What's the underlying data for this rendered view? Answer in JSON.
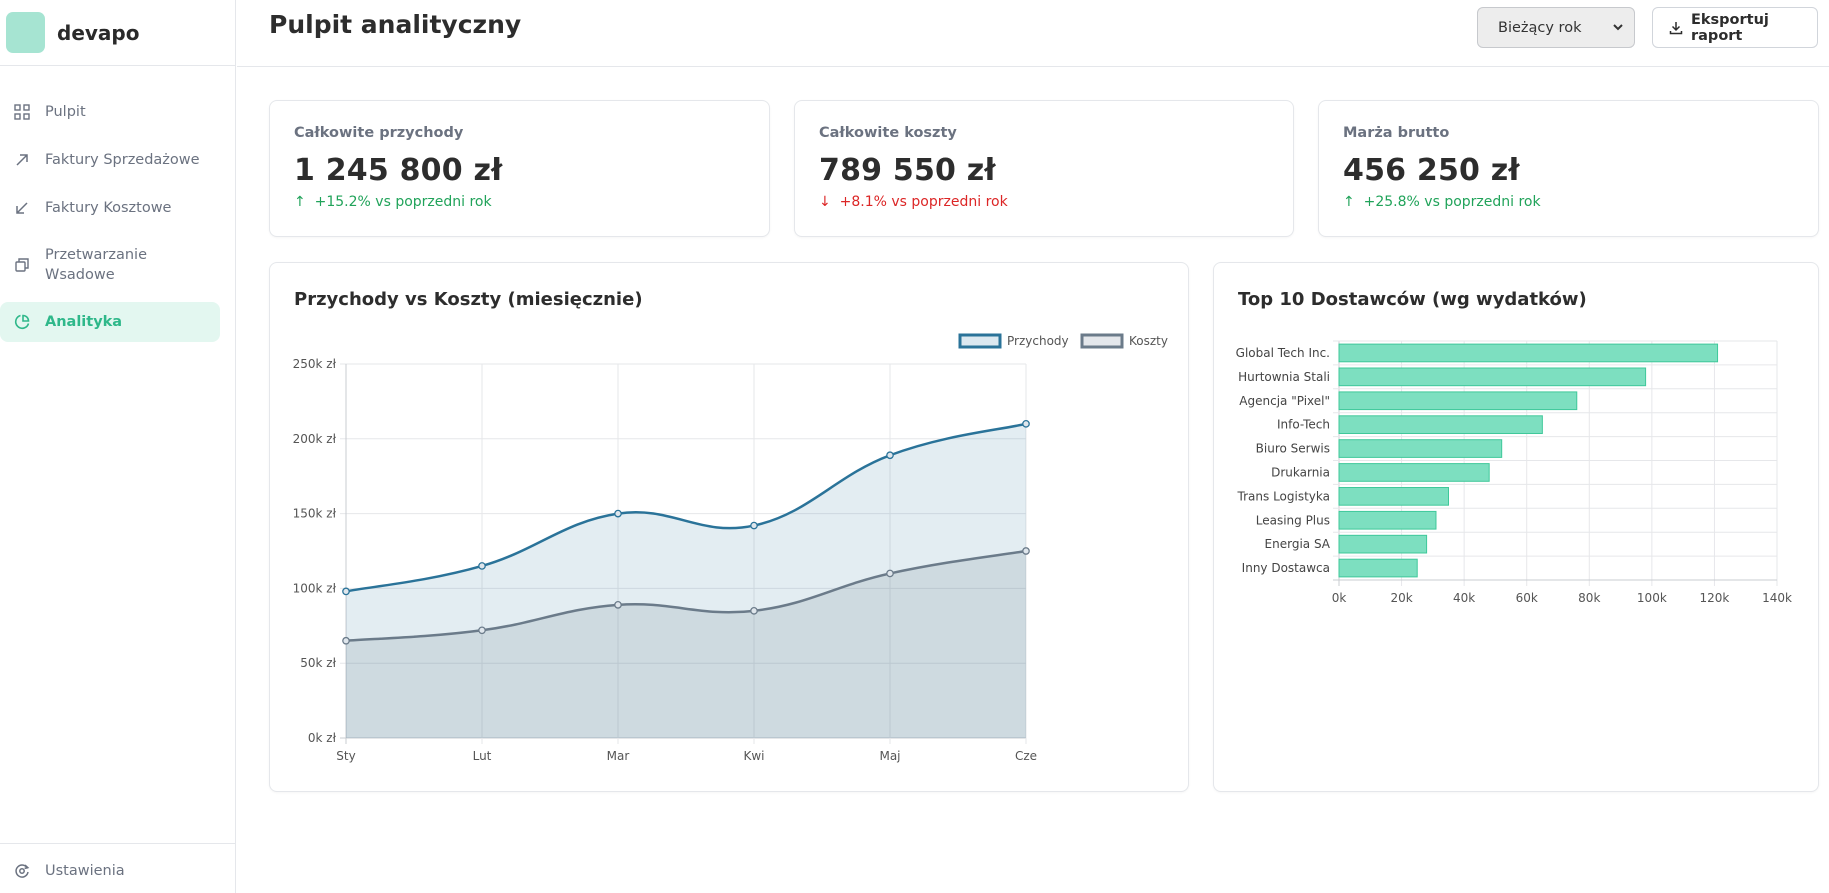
{
  "brand": {
    "name": "devapo"
  },
  "sidebar": {
    "items": [
      {
        "label": "Pulpit",
        "icon": "grid-icon"
      },
      {
        "label": "Faktury Sprzedażowe",
        "icon": "arrow-up-right-icon"
      },
      {
        "label": "Faktury Kosztowe",
        "icon": "arrow-down-left-icon"
      },
      {
        "label": "Przetwarzanie Wsadowe",
        "icon": "batch-icon"
      },
      {
        "label": "Analityka",
        "icon": "pie-chart-icon",
        "active": true
      }
    ],
    "footer": {
      "label": "Ustawienia",
      "icon": "settings-icon"
    }
  },
  "header": {
    "title": "Pulpit analityczny",
    "period_select": {
      "value": "Bieżący rok"
    },
    "export_label": "Eksportuj raport"
  },
  "stats": [
    {
      "label": "Całkowite przychody",
      "value": "1 245 800 zł",
      "arrow": "↑",
      "trend": "+15.2% vs poprzedni rok",
      "direction": "up"
    },
    {
      "label": "Całkowite koszty",
      "value": "789 550 zł",
      "arrow": "↓",
      "trend": "+8.1% vs poprzedni rok",
      "direction": "down"
    },
    {
      "label": "Marża brutto",
      "value": "456 250 zł",
      "arrow": "↑",
      "trend": "+25.8% vs poprzedni rok",
      "direction": "up"
    }
  ],
  "colors": {
    "accent": "#2fb88a",
    "revenue_line": "#2a7399",
    "costs_line": "#6b7b8a",
    "bar_fill": "#7ddfc0",
    "up": "#21a35a",
    "down": "#dc2626"
  },
  "chart_data": [
    {
      "type": "line",
      "title": "Przychody vs Koszty (miesięcznie)",
      "categories": [
        "Sty",
        "Lut",
        "Mar",
        "Kwi",
        "Maj",
        "Cze"
      ],
      "series": [
        {
          "name": "Przychody",
          "values": [
            98000,
            115000,
            150000,
            142000,
            189000,
            210000
          ]
        },
        {
          "name": "Koszty",
          "values": [
            65000,
            72000,
            89000,
            85000,
            110000,
            125000
          ]
        }
      ],
      "ylim": [
        0,
        250000
      ],
      "yticks": [
        "0k zł",
        "50k zł",
        "100k zł",
        "150k zł",
        "200k zł",
        "250k zł"
      ],
      "legend": "top-right",
      "fill": true,
      "grid": true
    },
    {
      "type": "bar",
      "orientation": "horizontal",
      "title": "Top 10 Dostawców (wg wydatków)",
      "categories": [
        "Global Tech Inc.",
        "Hurtownia Stali",
        "Agencja \"Pixel\"",
        "Info-Tech",
        "Biuro Serwis",
        "Drukarnia",
        "Trans Logistyka",
        "Leasing Plus",
        "Energia SA",
        "Inny Dostawca"
      ],
      "values": [
        121000,
        98000,
        76000,
        65000,
        52000,
        48000,
        35000,
        31000,
        28000,
        25000
      ],
      "xlim": [
        0,
        140000
      ],
      "xticks": [
        "0k",
        "20k",
        "40k",
        "60k",
        "80k",
        "100k",
        "120k",
        "140k"
      ],
      "grid": true
    }
  ]
}
